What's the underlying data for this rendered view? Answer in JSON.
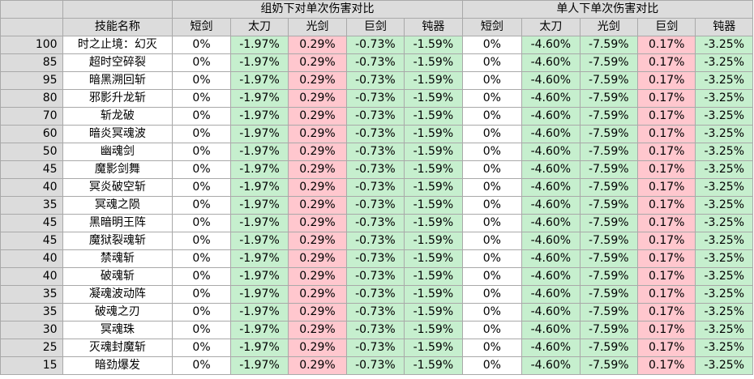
{
  "header": {
    "skill_name_label": "技能名称",
    "group_left_title": "组奶下对单次伤害对比",
    "group_right_title": "单人下单次伤害对比",
    "weapon_types": [
      "短剑",
      "太刀",
      "光剑",
      "巨剑",
      "钝器"
    ]
  },
  "colors": {
    "negative_fill": "#c6efce",
    "positive_fill": "#ffc7ce",
    "header_fill": "#dcdcdc",
    "neutral_fill": "#ffffff"
  },
  "rows": [
    {
      "level": "100",
      "skill": "时之止境：幻灭",
      "group": [
        "0%",
        "-1.97%",
        "0.29%",
        "-0.73%",
        "-1.59%"
      ],
      "solo": [
        "0%",
        "-4.60%",
        "-7.59%",
        "0.17%",
        "-3.25%"
      ]
    },
    {
      "level": "85",
      "skill": "超时空碎裂",
      "group": [
        "0%",
        "-1.97%",
        "0.29%",
        "-0.73%",
        "-1.59%"
      ],
      "solo": [
        "0%",
        "-4.60%",
        "-7.59%",
        "0.17%",
        "-3.25%"
      ]
    },
    {
      "level": "95",
      "skill": "暗黑溯回斩",
      "group": [
        "0%",
        "-1.97%",
        "0.29%",
        "-0.73%",
        "-1.59%"
      ],
      "solo": [
        "0%",
        "-4.60%",
        "-7.59%",
        "0.17%",
        "-3.25%"
      ]
    },
    {
      "level": "80",
      "skill": "邪影升龙斩",
      "group": [
        "0%",
        "-1.97%",
        "0.29%",
        "-0.73%",
        "-1.59%"
      ],
      "solo": [
        "0%",
        "-4.60%",
        "-7.59%",
        "0.17%",
        "-3.25%"
      ]
    },
    {
      "level": "70",
      "skill": "斩龙破",
      "group": [
        "0%",
        "-1.97%",
        "0.29%",
        "-0.73%",
        "-1.59%"
      ],
      "solo": [
        "0%",
        "-4.60%",
        "-7.59%",
        "0.17%",
        "-3.25%"
      ]
    },
    {
      "level": "60",
      "skill": "暗炎冥魂波",
      "group": [
        "0%",
        "-1.97%",
        "0.29%",
        "-0.73%",
        "-1.59%"
      ],
      "solo": [
        "0%",
        "-4.60%",
        "-7.59%",
        "0.17%",
        "-3.25%"
      ]
    },
    {
      "level": "50",
      "skill": "幽魂剑",
      "group": [
        "0%",
        "-1.97%",
        "0.29%",
        "-0.73%",
        "-1.59%"
      ],
      "solo": [
        "0%",
        "-4.60%",
        "-7.59%",
        "0.17%",
        "-3.25%"
      ]
    },
    {
      "level": "45",
      "skill": "魔影剑舞",
      "group": [
        "0%",
        "-1.97%",
        "0.29%",
        "-0.73%",
        "-1.59%"
      ],
      "solo": [
        "0%",
        "-4.60%",
        "-7.59%",
        "0.17%",
        "-3.25%"
      ]
    },
    {
      "level": "40",
      "skill": "冥炎破空斩",
      "group": [
        "0%",
        "-1.97%",
        "0.29%",
        "-0.73%",
        "-1.59%"
      ],
      "solo": [
        "0%",
        "-4.60%",
        "-7.59%",
        "0.17%",
        "-3.25%"
      ]
    },
    {
      "level": "35",
      "skill": "冥魂之陨",
      "group": [
        "0%",
        "-1.97%",
        "0.29%",
        "-0.73%",
        "-1.59%"
      ],
      "solo": [
        "0%",
        "-4.60%",
        "-7.59%",
        "0.17%",
        "-3.25%"
      ]
    },
    {
      "level": "45",
      "skill": "黑暗明王阵",
      "group": [
        "0%",
        "-1.97%",
        "0.29%",
        "-0.73%",
        "-1.59%"
      ],
      "solo": [
        "0%",
        "-4.60%",
        "-7.59%",
        "0.17%",
        "-3.25%"
      ]
    },
    {
      "level": "45",
      "skill": "魔狱裂魂斩",
      "group": [
        "0%",
        "-1.97%",
        "0.29%",
        "-0.73%",
        "-1.59%"
      ],
      "solo": [
        "0%",
        "-4.60%",
        "-7.59%",
        "0.17%",
        "-3.25%"
      ]
    },
    {
      "level": "40",
      "skill": "禁魂斩",
      "group": [
        "0%",
        "-1.97%",
        "0.29%",
        "-0.73%",
        "-1.59%"
      ],
      "solo": [
        "0%",
        "-4.60%",
        "-7.59%",
        "0.17%",
        "-3.25%"
      ]
    },
    {
      "level": "40",
      "skill": "破魂斩",
      "group": [
        "0%",
        "-1.97%",
        "0.29%",
        "-0.73%",
        "-1.59%"
      ],
      "solo": [
        "0%",
        "-4.60%",
        "-7.59%",
        "0.17%",
        "-3.25%"
      ]
    },
    {
      "level": "35",
      "skill": "凝魂波动阵",
      "group": [
        "0%",
        "-1.97%",
        "0.29%",
        "-0.73%",
        "-1.59%"
      ],
      "solo": [
        "0%",
        "-4.60%",
        "-7.59%",
        "0.17%",
        "-3.25%"
      ]
    },
    {
      "level": "35",
      "skill": "破魂之刃",
      "group": [
        "0%",
        "-1.97%",
        "0.29%",
        "-0.73%",
        "-1.59%"
      ],
      "solo": [
        "0%",
        "-4.60%",
        "-7.59%",
        "0.17%",
        "-3.25%"
      ]
    },
    {
      "level": "30",
      "skill": "冥魂珠",
      "group": [
        "0%",
        "-1.97%",
        "0.29%",
        "-0.73%",
        "-1.59%"
      ],
      "solo": [
        "0%",
        "-4.60%",
        "-7.59%",
        "0.17%",
        "-3.25%"
      ]
    },
    {
      "level": "25",
      "skill": "灭魂封魔斩",
      "group": [
        "0%",
        "-1.97%",
        "0.29%",
        "-0.73%",
        "-1.59%"
      ],
      "solo": [
        "0%",
        "-4.60%",
        "-7.59%",
        "0.17%",
        "-3.25%"
      ]
    },
    {
      "level": "15",
      "skill": "暗劲爆发",
      "group": [
        "0%",
        "-1.97%",
        "0.29%",
        "-0.73%",
        "-1.59%"
      ],
      "solo": [
        "0%",
        "-4.60%",
        "-7.59%",
        "0.17%",
        "-3.25%"
      ]
    }
  ]
}
